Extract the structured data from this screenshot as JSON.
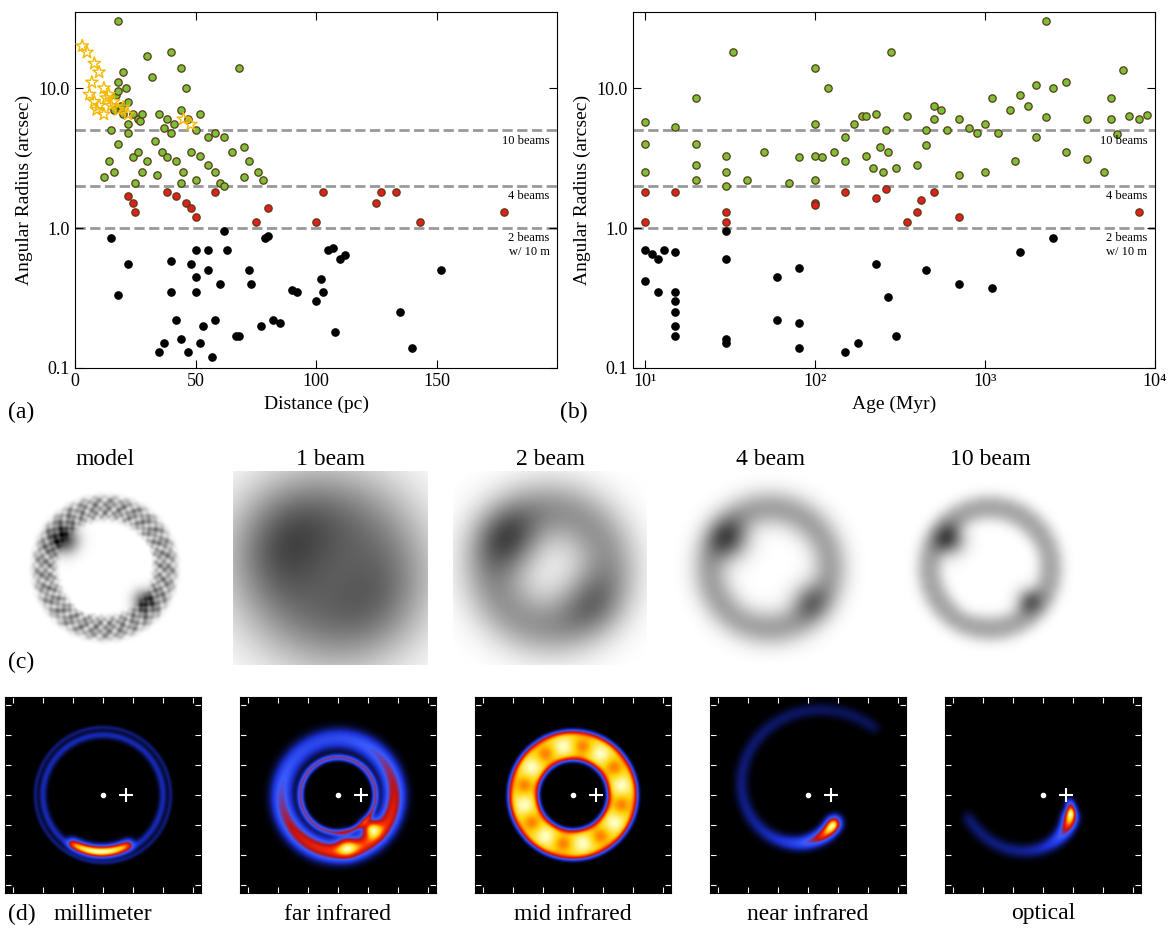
{
  "chart_data": [
    {
      "type": "scatter",
      "label": "(a)",
      "x_label": "Distance (pc)",
      "y_label": "Angular Radius (arcsec)",
      "log": "y",
      "xlim": [
        0,
        200
      ],
      "xticks": [
        0,
        50,
        100,
        150
      ],
      "ylim": [
        0.1,
        35
      ],
      "yticks": [
        0.1,
        {
          "value": 1,
          "label": "1.0"
        },
        {
          "value": 10,
          "label": "10.0"
        }
      ],
      "reference_lines": [
        {
          "value": 5,
          "label": "10 beams"
        },
        {
          "value": 2,
          "label": "4 beams"
        },
        {
          "value": 1,
          "label": "2 beams\nw/ 10 m"
        }
      ],
      "series": [
        {
          "color": "#7cbf3c",
          "marker": "circle",
          "x": [
            18,
            20,
            18,
            21,
            17,
            22,
            19,
            16,
            20,
            24,
            26,
            28,
            30,
            32,
            35,
            38,
            40,
            41,
            44,
            46,
            44,
            47,
            50,
            52,
            55,
            58,
            62,
            65,
            68,
            70,
            72,
            76,
            78,
            15,
            18,
            22,
            24,
            26,
            28,
            30,
            33,
            36,
            38,
            40,
            42,
            45,
            48,
            50,
            52,
            55,
            58,
            60,
            62,
            12,
            14,
            16,
            25,
            34,
            44,
            70,
            18,
            22,
            27,
            37
          ],
          "y": [
            30,
            13,
            11,
            10,
            9,
            8,
            7.5,
            7,
            6.5,
            6.5,
            6,
            6.5,
            17,
            12,
            6.5,
            6,
            18,
            5.5,
            14,
            10,
            7,
            6,
            5,
            6.5,
            4.5,
            4.8,
            4.5,
            3.5,
            14,
            3.8,
            3,
            2.5,
            2.2,
            5,
            4,
            4.8,
            3.2,
            3.5,
            2.5,
            3,
            4.2,
            3.5,
            3.2,
            4.8,
            3,
            2.5,
            3.5,
            2.2,
            3.3,
            2.8,
            2.5,
            2.1,
            2,
            2.3,
            3,
            2.5,
            2.1,
            2.4,
            2.1,
            2.3,
            9.5,
            5.5,
            5.8,
            5.2
          ]
        },
        {
          "color": "#e02020",
          "marker": "circle",
          "x": [
            24,
            25,
            38,
            42,
            46,
            50,
            48,
            58,
            75,
            80,
            100,
            103,
            125,
            127,
            133,
            143,
            178,
            22
          ],
          "y": [
            1.5,
            1.3,
            1.8,
            1.7,
            1.5,
            1.2,
            1.4,
            1.8,
            1.1,
            1.4,
            1.1,
            1.8,
            1.5,
            1.8,
            1.8,
            1.1,
            1.3,
            1.7
          ]
        },
        {
          "color": "#000000",
          "marker": "circle",
          "x": [
            15,
            18,
            22,
            35,
            37,
            40,
            42,
            40,
            44,
            47,
            48,
            50,
            50,
            50,
            52,
            53,
            55,
            58,
            60,
            62,
            63,
            67,
            68,
            72,
            73,
            77,
            79,
            80,
            82,
            85,
            90,
            92,
            100,
            102,
            103,
            105,
            107,
            110,
            108,
            112,
            135,
            140,
            152,
            55,
            57
          ],
          "y": [
            0.85,
            0.33,
            0.55,
            0.13,
            0.15,
            0.58,
            0.22,
            0.35,
            0.16,
            0.13,
            0.55,
            0.7,
            0.45,
            0.35,
            0.15,
            0.2,
            0.7,
            0.22,
            0.4,
            0.95,
            0.7,
            0.17,
            0.17,
            0.5,
            0.4,
            0.2,
            0.85,
            0.88,
            0.22,
            0.21,
            0.36,
            0.35,
            0.3,
            0.43,
            0.35,
            0.7,
            0.72,
            0.6,
            0.18,
            0.64,
            0.25,
            0.14,
            0.5,
            0.5,
            0.12
          ]
        },
        {
          "color": "#f5b800",
          "marker": "star",
          "x": [
            3,
            5,
            8,
            10,
            7,
            6,
            8,
            9,
            12,
            14,
            16,
            15,
            18,
            20,
            12,
            13,
            22,
            45,
            48,
            10
          ],
          "y": [
            20,
            18,
            15,
            13,
            11,
            9,
            8,
            7,
            10,
            9,
            8,
            7.5,
            7,
            7.3,
            6.5,
            8.5,
            6.5,
            6,
            5.5,
            7.5
          ]
        }
      ]
    },
    {
      "type": "scatter",
      "label": "(b)",
      "x_label": "Age (Myr)",
      "y_label": "Angular Radius (arcsec)",
      "log": true,
      "xlim": [
        8.5,
        10000
      ],
      "xticks": [
        {
          "value": 10,
          "label": "10¹"
        },
        {
          "value": 100,
          "label": "10²"
        },
        {
          "value": 1000,
          "label": "10³"
        },
        {
          "value": 10000,
          "label": "10⁴"
        }
      ],
      "ylim": [
        0.1,
        35
      ],
      "yticks": [
        0.1,
        {
          "value": 1,
          "label": "1.0"
        },
        {
          "value": 10,
          "label": "10.0"
        }
      ],
      "reference_lines": [
        {
          "value": 5,
          "label": "10 beams"
        },
        {
          "value": 2,
          "label": "4 beams"
        },
        {
          "value": 1,
          "label": "2 beams\nw/ 10 m"
        }
      ],
      "series": [
        {
          "color": "#7cbf3c",
          "marker": "circle",
          "x": [
            10,
            10,
            10,
            15,
            20,
            20,
            20,
            20,
            30,
            30,
            33,
            40,
            50,
            70,
            80,
            100,
            100,
            100,
            100,
            110,
            120,
            130,
            150,
            150,
            170,
            190,
            200,
            200,
            220,
            230,
            240,
            250,
            260,
            270,
            280,
            300,
            350,
            400,
            450,
            450,
            500,
            500,
            550,
            600,
            700,
            700,
            800,
            900,
            1000,
            1000,
            1100,
            1200,
            1400,
            1500,
            1600,
            1800,
            2000,
            2000,
            2300,
            2300,
            2500,
            3000,
            3000,
            4000,
            4000,
            5000,
            5500,
            5500,
            6000,
            6500,
            7000,
            8000,
            9000,
            30
          ],
          "y": [
            5.7,
            2.5,
            4,
            5.3,
            8.5,
            4,
            2.8,
            2.2,
            2,
            3.3,
            18,
            2.2,
            3.5,
            2.1,
            3.2,
            14,
            3.3,
            2.2,
            5.5,
            3.2,
            10,
            3.5,
            3,
            4.5,
            5.5,
            6.3,
            6.3,
            3.3,
            2.7,
            6.5,
            3.8,
            2.5,
            5,
            3.5,
            18,
            2.7,
            6.3,
            2.8,
            5,
            3.9,
            6,
            7.5,
            7,
            5,
            2.4,
            6,
            5.2,
            4.8,
            2.5,
            5.5,
            8.5,
            4.8,
            7,
            3,
            9,
            7.5,
            4.5,
            10.5,
            6.2,
            30,
            10,
            3.5,
            11,
            3.1,
            6,
            2.5,
            6,
            8.5,
            4.7,
            13.5,
            6.3,
            6,
            6.4,
            2.5
          ]
        },
        {
          "color": "#e02020",
          "marker": "circle",
          "x": [
            10,
            10,
            15,
            30,
            30,
            100,
            100,
            150,
            230,
            350,
            400,
            420,
            500,
            700,
            8000,
            260
          ],
          "y": [
            1.8,
            1.1,
            1.8,
            1.3,
            1.1,
            1.5,
            1.45,
            1.8,
            1.65,
            1.1,
            1.3,
            1.6,
            1.8,
            1.2,
            1.3,
            1.9
          ]
        },
        {
          "color": "#000000",
          "marker": "circle",
          "x": [
            10,
            10,
            11,
            12,
            12,
            13,
            15,
            15,
            15,
            15,
            15,
            15,
            30,
            30,
            30,
            30,
            60,
            60,
            80,
            80,
            80,
            150,
            180,
            230,
            270,
            300,
            450,
            700,
            1100,
            1600,
            2500
          ],
          "y": [
            0.7,
            0.42,
            0.65,
            0.6,
            0.35,
            0.7,
            0.35,
            0.3,
            0.25,
            0.2,
            0.17,
            0.68,
            0.95,
            0.6,
            0.16,
            0.15,
            0.45,
            0.22,
            0.52,
            0.21,
            0.14,
            0.13,
            0.15,
            0.55,
            0.32,
            0.17,
            0.5,
            0.4,
            0.37,
            0.68,
            0.85
          ]
        }
      ]
    }
  ],
  "image_rows": [
    {
      "label": "(c)",
      "titles": [
        "model",
        "1 beam",
        "2 beam",
        "4 beam",
        "10 beam"
      ]
    },
    {
      "label": "(d)",
      "titles": [
        "millimeter",
        "far infrared",
        "mid infrared",
        "near infrared",
        "optical"
      ]
    }
  ]
}
